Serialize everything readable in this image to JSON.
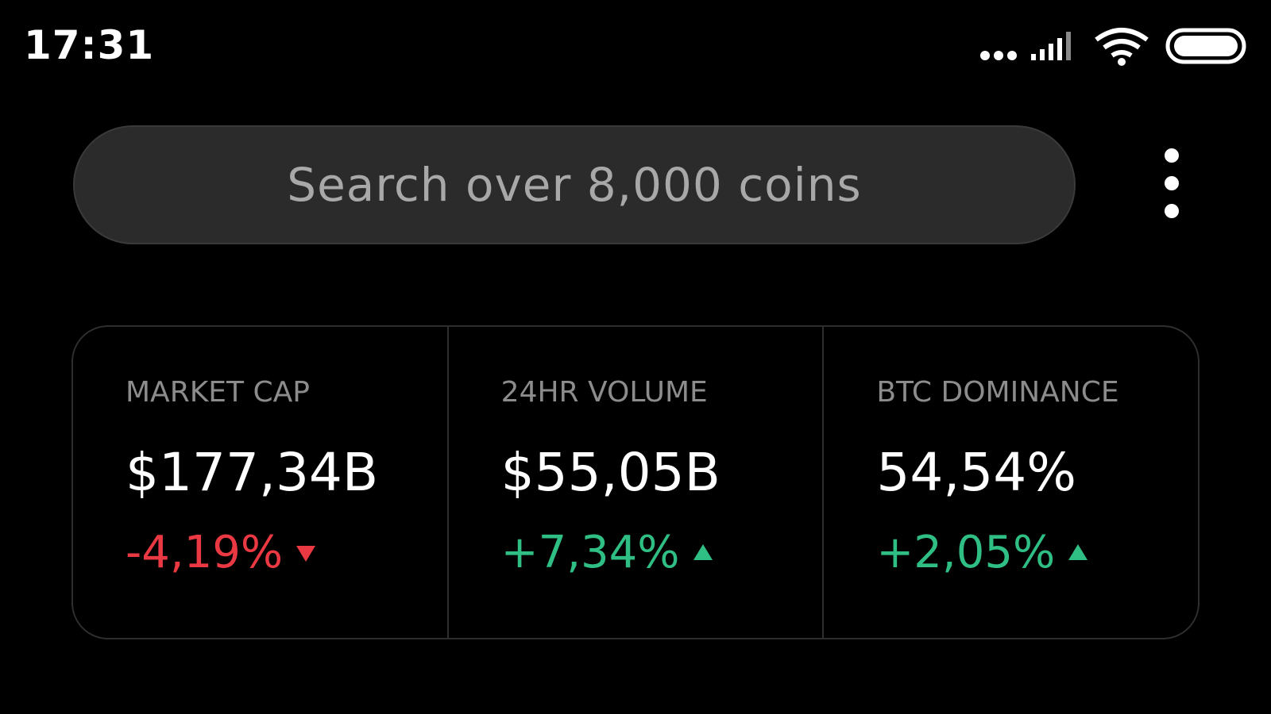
{
  "status_bar": {
    "time": "17:31"
  },
  "search": {
    "placeholder": "Search over 8,000 coins"
  },
  "stats": [
    {
      "label": "MARKET CAP",
      "value": "$177,34B",
      "change": "-4,19%"
    },
    {
      "label": "24HR VOLUME",
      "value": "$55,05B",
      "change": "+7,34%"
    },
    {
      "label": "BTC DOMINANCE",
      "value": "54,54%",
      "change": "+2,05%"
    }
  ]
}
